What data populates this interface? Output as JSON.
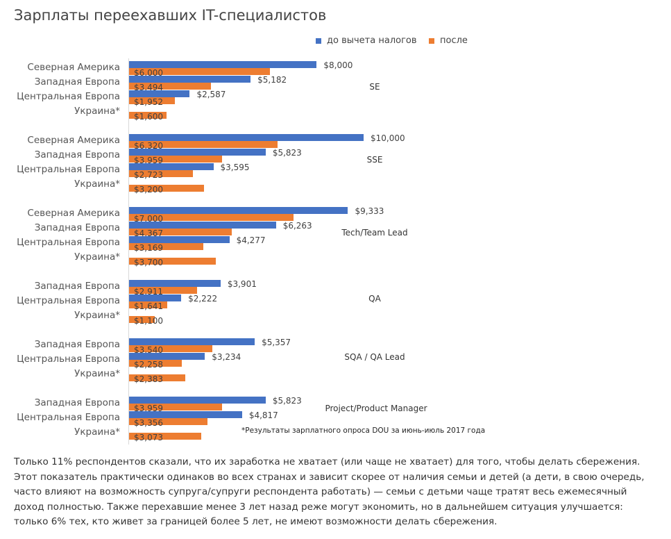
{
  "chart_data": {
    "type": "bar",
    "orientation": "horizontal",
    "title": "Зарплаты переехавших IT-специалистов",
    "legend": [
      "до вычета налогов",
      "после"
    ],
    "legend_position": "top-right",
    "colors": {
      "before": "#4472c4",
      "after": "#ed7d31"
    },
    "xlim": [
      0,
      10000
    ],
    "footnote": "*Результаты зарплатного опроса DOU за июнь-июль 2017 года",
    "groups": [
      {
        "name": "SE",
        "rows": [
          {
            "country": "Северная Америка",
            "before": 8000,
            "before_label": "$8,000",
            "after": 6000,
            "after_label": "$6,000"
          },
          {
            "country": "Западная Европа",
            "before": 5182,
            "before_label": "$5,182",
            "after": 3494,
            "after_label": "$3,494"
          },
          {
            "country": "Центральная Европа",
            "before": 2587,
            "before_label": "$2,587",
            "after": 1952,
            "after_label": "$1,952"
          },
          {
            "country": "Украина*",
            "before": null,
            "after": 1600,
            "after_label": "$1,600"
          }
        ]
      },
      {
        "name": "SSE",
        "rows": [
          {
            "country": "Северная Америка",
            "before": 10000,
            "before_label": "$10,000",
            "after": 6320,
            "after_label": "$6,320"
          },
          {
            "country": "Западная Европа",
            "before": 5823,
            "before_label": "$5,823",
            "after": 3959,
            "after_label": "$3,959"
          },
          {
            "country": "Центральная Европа",
            "before": 3595,
            "before_label": "$3,595",
            "after": 2723,
            "after_label": "$2,723"
          },
          {
            "country": "Украина*",
            "before": null,
            "after": 3200,
            "after_label": "$3,200"
          }
        ]
      },
      {
        "name": "Tech/Team Lead",
        "rows": [
          {
            "country": "Северная Америка",
            "before": 9333,
            "before_label": "$9,333",
            "after": 7000,
            "after_label": "$7,000"
          },
          {
            "country": "Западная Европа",
            "before": 6263,
            "before_label": "$6,263",
            "after": 4367,
            "after_label": "$4,367"
          },
          {
            "country": "Центральная Европа",
            "before": 4277,
            "before_label": "$4,277",
            "after": 3169,
            "after_label": "$3,169"
          },
          {
            "country": "Украина*",
            "before": null,
            "after": 3700,
            "after_label": "$3,700"
          }
        ]
      },
      {
        "name": "QA",
        "rows": [
          {
            "country": "Западная Европа",
            "before": 3901,
            "before_label": "$3,901",
            "after": 2911,
            "after_label": "$2,911"
          },
          {
            "country": "Центральная Европа",
            "before": 2222,
            "before_label": "$2,222",
            "after": 1641,
            "after_label": "$1,641"
          },
          {
            "country": "Украина*",
            "before": null,
            "after": 1100,
            "after_label": "$1,100"
          }
        ]
      },
      {
        "name": "SQA / QA Lead",
        "rows": [
          {
            "country": "Западная Европа",
            "before": 5357,
            "before_label": "$5,357",
            "after": 3540,
            "after_label": "$3,540"
          },
          {
            "country": "Центральная Европа",
            "before": 3234,
            "before_label": "$3,234",
            "after": 2258,
            "after_label": "$2,258"
          },
          {
            "country": "Украина*",
            "before": null,
            "after": 2383,
            "after_label": "$2,383"
          }
        ]
      },
      {
        "name": "Project/Product Manager",
        "rows": [
          {
            "country": "Западная Европа",
            "before": 5823,
            "before_label": "$5,823",
            "after": 3959,
            "after_label": "$3,959"
          },
          {
            "country": "Центральная Европа",
            "before": 4817,
            "before_label": "$4,817",
            "after": 3356,
            "after_label": "$3,356"
          },
          {
            "country": "Украина*",
            "before": null,
            "after": 3073,
            "after_label": "$3,073"
          }
        ]
      }
    ]
  },
  "paragraph": "Только 11% респондентов сказали, что их заработка не хватает (или чаще не хватает) для того, чтобы делать сбережения. Этот показатель практически одинаков во всех странах и зависит скорее от наличия семьи и детей (а дети, в свою очередь, часто влияют на возможность супруга/супруги респондента работать) — семьи с детьми чаще тратят весь ежемесячный доход полностью. Также перехавшие менее 3 лет назад реже могут экономить, но в дальнейшем ситуация улучшается: только 6% тех, кто живет за границей более 5 лет, не имеют возможности делать сбережения."
}
